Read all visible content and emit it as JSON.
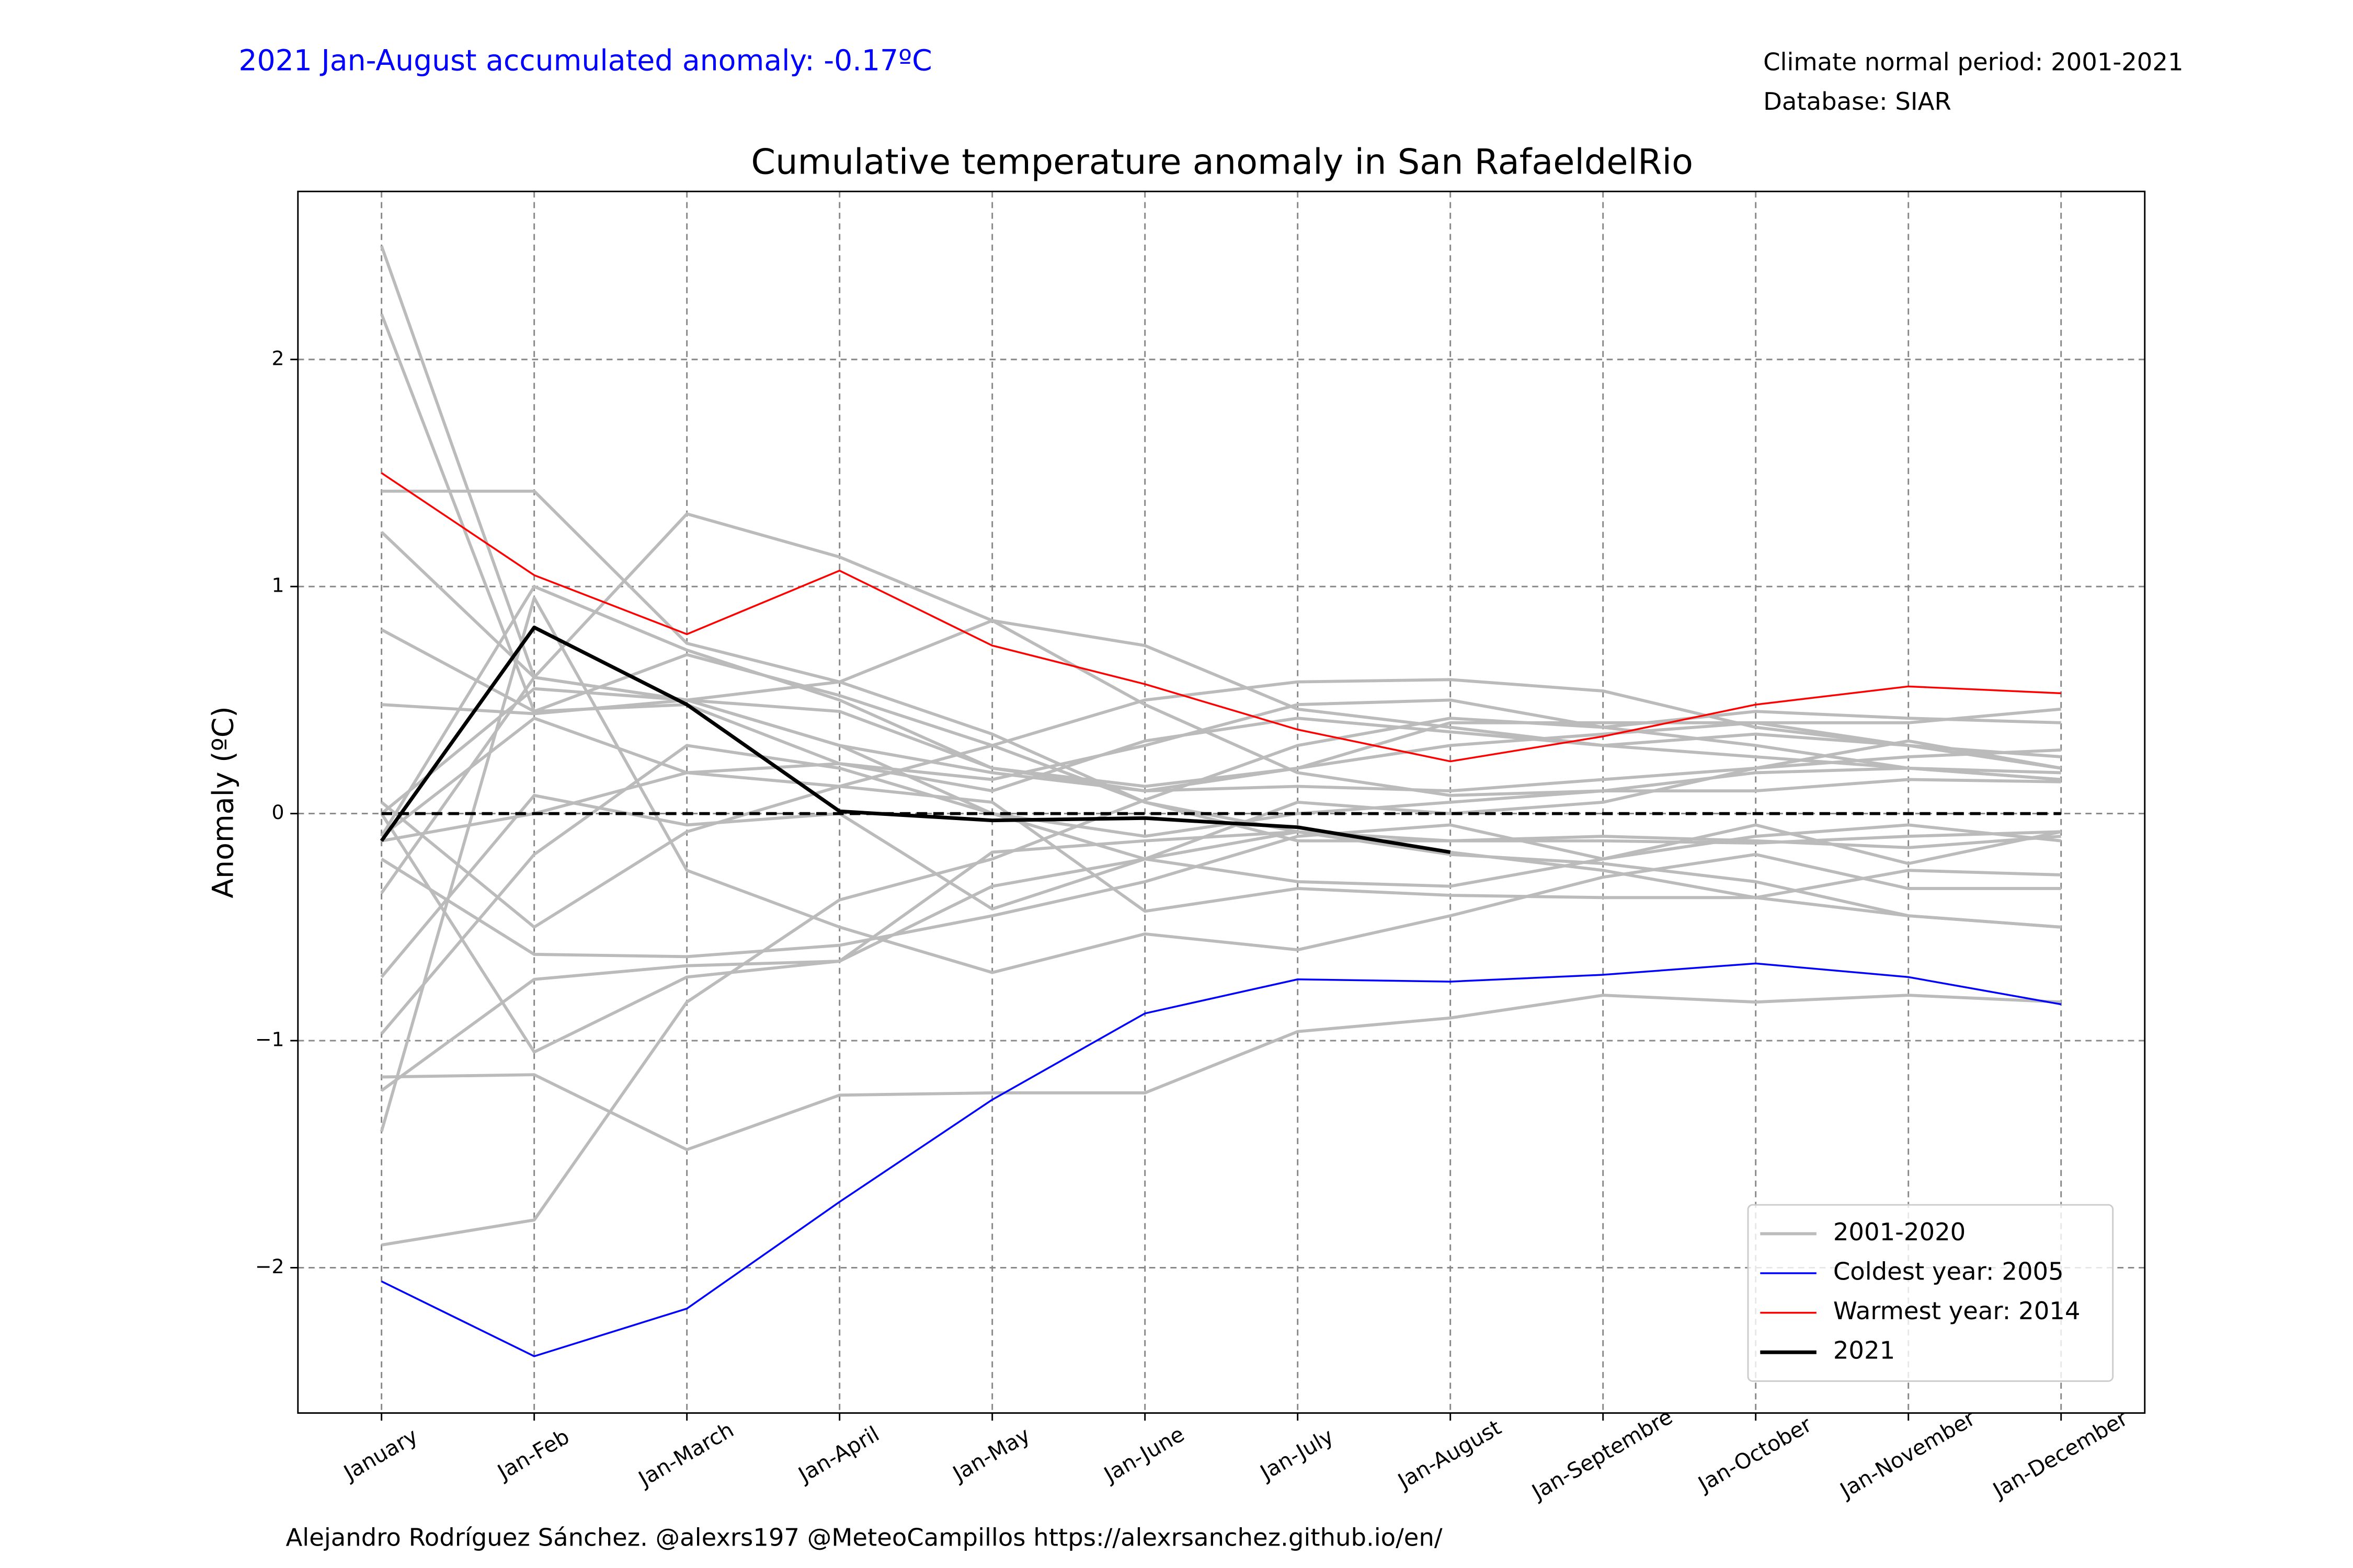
{
  "chart_data": {
    "type": "line",
    "title": "Cumulative temperature anomaly in San RafaeldelRio",
    "note_left": "2021 Jan-August accumulated anomaly: -0.17ºC",
    "note_right": [
      "Climate normal period: 2001-2021",
      "Database: SIAR"
    ],
    "footer": "Alejandro Rodríguez Sánchez. @alexrs197 @MeteoCampillos   https://alexrsanchez.github.io/en/",
    "ylabel": "Anomaly (ºC)",
    "categories": [
      "January",
      "Jan-Feb",
      "Jan-March",
      "Jan-April",
      "Jan-May",
      "Jan-June",
      "Jan-July",
      "Jan-August",
      "Jan-Septembre",
      "Jan-October",
      "Jan-November",
      "Jan-December"
    ],
    "ylim": [
      -2.64,
      2.74
    ],
    "yticks": [
      {
        "value": -2,
        "label": "−2"
      },
      {
        "value": -1,
        "label": "−1"
      },
      0,
      1,
      2
    ],
    "grid": true,
    "hline": 0,
    "legend": "lower right",
    "reference": {
      "name": "2001-2020",
      "color": "#bbbbbb",
      "lines": [
        [
          2.5,
          0.6,
          0.5,
          0.3,
          0.18,
          0.1,
          0.2,
          0.3,
          0.35,
          0.4,
          0.3,
          0.2
        ],
        [
          2.2,
          0.45,
          0.7,
          0.52,
          0.3,
          0.05,
          -0.08,
          -0.18,
          -0.22,
          -0.3,
          -0.45,
          -0.5
        ],
        [
          1.42,
          1.42,
          0.75,
          0.58,
          0.85,
          0.74,
          0.46,
          0.38,
          0.3,
          0.25,
          0.2,
          0.18
        ],
        [
          1.24,
          0.6,
          0.5,
          0.45,
          0.2,
          0.12,
          0.2,
          0.4,
          0.4,
          0.4,
          0.4,
          0.46
        ],
        [
          0.81,
          0.45,
          0.48,
          0.22,
          0.15,
          0.3,
          0.48,
          0.5,
          0.38,
          0.3,
          0.2,
          0.15
        ],
        [
          0.48,
          0.44,
          0.5,
          0.58,
          0.35,
          0.05,
          -0.12,
          -0.12,
          -0.1,
          -0.12,
          -0.15,
          -0.1
        ],
        [
          0.05,
          -0.5,
          -0.08,
          0.12,
          0.3,
          0.5,
          0.58,
          0.59,
          0.54,
          0.38,
          0.3,
          0.25
        ],
        [
          -0.1,
          1.0,
          0.72,
          0.5,
          0.2,
          0.1,
          0.12,
          0.1,
          0.15,
          0.2,
          0.25,
          0.28
        ],
        [
          -0.35,
          0.6,
          1.32,
          1.13,
          0.85,
          0.48,
          0.18,
          0.08,
          0.1,
          0.18,
          0.2,
          0.15
        ],
        [
          -0.72,
          0.08,
          -0.05,
          0.0,
          -0.42,
          -0.2,
          0.05,
          0.0,
          0.05,
          0.2,
          0.32,
          0.2
        ],
        [
          -0.97,
          -0.18,
          0.3,
          0.2,
          0.0,
          -0.2,
          -0.3,
          -0.32,
          -0.2,
          -0.05,
          -0.22,
          -0.08
        ],
        [
          -1.16,
          -1.15,
          -1.48,
          -1.24,
          -1.23,
          -1.23,
          -0.96,
          -0.9,
          -0.8,
          -0.83,
          -0.8,
          -0.83
        ],
        [
          -1.22,
          -0.73,
          -0.67,
          -0.65,
          -0.17,
          -0.12,
          -0.08,
          -0.12,
          -0.12,
          -0.13,
          -0.1,
          -0.08
        ],
        [
          -1.4,
          0.95,
          -0.25,
          -0.5,
          -0.7,
          -0.53,
          -0.6,
          -0.45,
          -0.28,
          -0.18,
          -0.33,
          -0.33
        ],
        [
          -1.9,
          -1.79,
          -0.83,
          -0.38,
          -0.2,
          0.06,
          0.3,
          0.42,
          0.38,
          0.45,
          0.42,
          0.4
        ],
        [
          -0.2,
          -0.62,
          -0.63,
          -0.58,
          -0.45,
          -0.3,
          -0.1,
          -0.05,
          -0.2,
          -0.1,
          -0.05,
          -0.12
        ],
        [
          0.0,
          -1.05,
          -0.72,
          -0.65,
          -0.32,
          -0.2,
          -0.08,
          -0.17,
          -0.25,
          -0.37,
          -0.45,
          -0.5
        ],
        [
          -0.1,
          0.42,
          0.18,
          0.22,
          0.1,
          0.32,
          0.42,
          0.36,
          0.3,
          0.35,
          0.3,
          0.2
        ],
        [
          -0.12,
          0.0,
          0.18,
          0.12,
          0.05,
          -0.43,
          -0.33,
          -0.36,
          -0.37,
          -0.37,
          -0.25,
          -0.27
        ],
        [
          0.0,
          0.55,
          0.5,
          0.3,
          0.0,
          -0.1,
          0.0,
          0.05,
          0.1,
          0.1,
          0.15,
          0.14
        ]
      ]
    },
    "series": [
      {
        "name": "Coldest year: 2005",
        "color": "#0000ff",
        "width": 1.2,
        "values": [
          -2.06,
          -2.39,
          -2.18,
          -1.71,
          -1.26,
          -0.88,
          -0.73,
          -0.74,
          -0.71,
          -0.66,
          -0.72,
          -0.84
        ]
      },
      {
        "name": "Warmest year: 2014",
        "color": "#ff0000",
        "width": 1.2,
        "values": [
          1.5,
          1.05,
          0.79,
          1.07,
          0.74,
          0.57,
          0.37,
          0.23,
          0.34,
          0.48,
          0.56,
          0.53
        ]
      },
      {
        "name": "2021",
        "color": "#000000",
        "width": 2.4,
        "values": [
          -0.12,
          0.82,
          0.48,
          0.01,
          -0.03,
          -0.02,
          -0.06,
          -0.17,
          null,
          null,
          null,
          null
        ]
      }
    ]
  }
}
